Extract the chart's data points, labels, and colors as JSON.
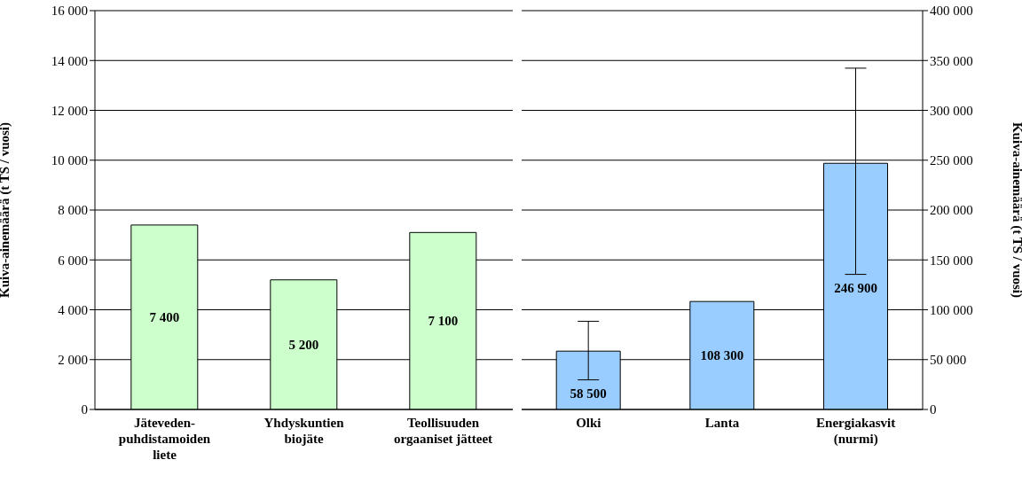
{
  "chart_data": [
    {
      "type": "bar",
      "ylabel": "Kuiva-ainemäärä (t TS / vuosi)",
      "categories": [
        "Jäteveden-puhdistamoiden liete",
        "Yhdyskuntien biojäte",
        "Teollisuuden orgaaniset jätteet"
      ],
      "series": [
        {
          "color": "#ccffcc",
          "values": [
            7400,
            5200,
            7100
          ],
          "value_labels": [
            "7 400",
            "5 200",
            "7 100"
          ]
        }
      ],
      "ylim": [
        0,
        16000
      ],
      "yticks": [
        {
          "value": 0,
          "label": "0"
        },
        {
          "value": 2000,
          "label": "2 000"
        },
        {
          "value": 4000,
          "label": "4 000"
        },
        {
          "value": 6000,
          "label": "6 000"
        },
        {
          "value": 8000,
          "label": "8 000"
        },
        {
          "value": 10000,
          "label": "10 000"
        },
        {
          "value": 12000,
          "label": "12 000"
        },
        {
          "value": 14000,
          "label": "14 000"
        },
        {
          "value": 16000,
          "label": "16 000"
        }
      ],
      "grid": "y"
    },
    {
      "type": "bar",
      "y2label": "Kuiva-ainemäärä (t TS / vuosi)",
      "categories": [
        "Olki",
        "Lanta",
        "Energiakasvit (nurmi)"
      ],
      "series": [
        {
          "color": "#99ccff",
          "axis": "y2",
          "values": [
            58500,
            108300,
            246900
          ],
          "value_labels": [
            "58 500",
            "108 300",
            "246 900"
          ],
          "errors": [
            [
              29700,
              88400
            ],
            null,
            [
              135500,
              342300
            ]
          ]
        }
      ],
      "y2lim": [
        0,
        400000
      ],
      "y2ticks": [
        {
          "value": 0,
          "label": "0"
        },
        {
          "value": 50000,
          "label": "50 000"
        },
        {
          "value": 100000,
          "label": "100 000"
        },
        {
          "value": 150000,
          "label": "150 000"
        },
        {
          "value": 200000,
          "label": "200 000"
        },
        {
          "value": 250000,
          "label": "250 000"
        },
        {
          "value": 300000,
          "label": "300 000"
        },
        {
          "value": 350000,
          "label": "350 000"
        },
        {
          "value": 400000,
          "label": "400 000"
        }
      ],
      "grid": "y2"
    }
  ]
}
